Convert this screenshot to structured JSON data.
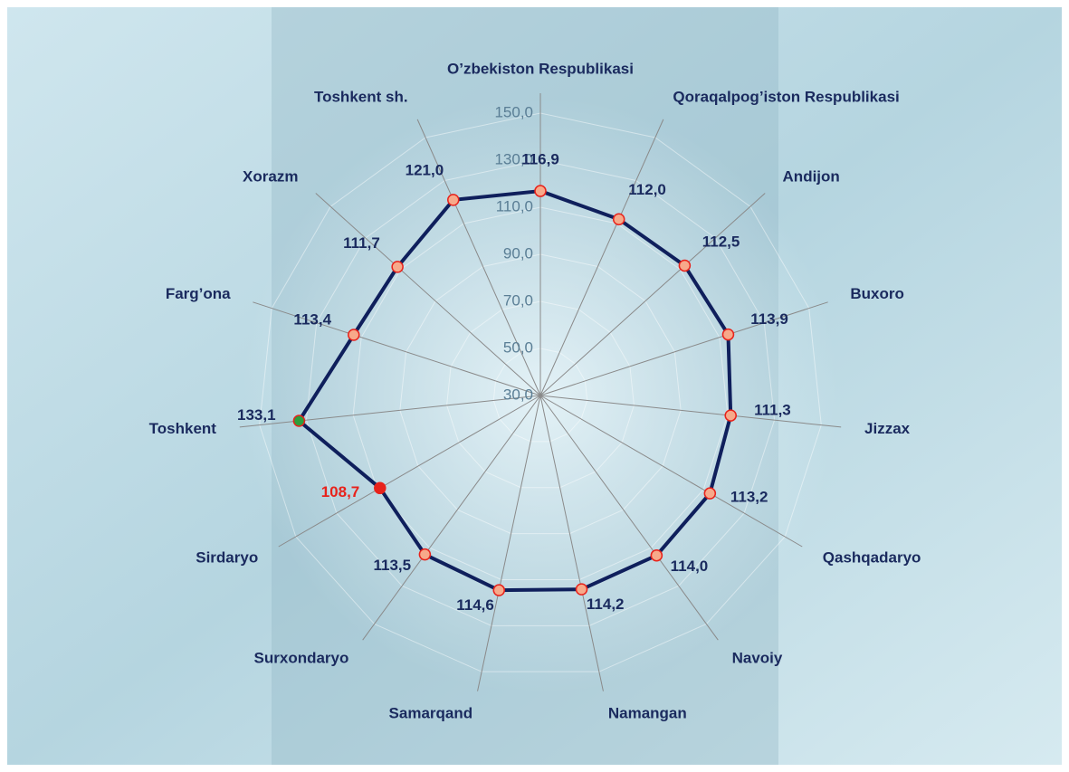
{
  "chart_data": {
    "type": "radar",
    "categories": [
      "O’zbekiston Respublikasi",
      "Qoraqalpog’iston Respublikasi",
      "Andijon",
      "Buxoro",
      "Jizzax",
      "Qashqadaryo",
      "Navoiy",
      "Namangan",
      "Samarqand",
      "Surxondaryo",
      "Sirdaryo",
      "Toshkent",
      "Farg’ona",
      "Xorazm",
      "Toshkent sh."
    ],
    "values": [
      116.9,
      112.0,
      112.5,
      113.9,
      111.3,
      113.2,
      114.0,
      114.2,
      114.6,
      113.5,
      108.7,
      133.1,
      113.4,
      111.7,
      121.0
    ],
    "value_labels": [
      "116,9",
      "112,0",
      "112,5",
      "113,9",
      "111,3",
      "113,2",
      "114,0",
      "114,2",
      "114,6",
      "113,5",
      "108,7",
      "133,1",
      "113,4",
      "111,7",
      "121,0"
    ],
    "value_label_colors": [
      "#1a2a5e",
      "#1a2a5e",
      "#1a2a5e",
      "#1a2a5e",
      "#1a2a5e",
      "#1a2a5e",
      "#1a2a5e",
      "#1a2a5e",
      "#1a2a5e",
      "#1a2a5e",
      "#e8221b",
      "#1a2a5e",
      "#1a2a5e",
      "#1a2a5e",
      "#1a2a5e"
    ],
    "marker_colors": [
      "#f7a98a",
      "#f7a98a",
      "#f7a98a",
      "#f7a98a",
      "#f7a98a",
      "#f7a98a",
      "#f7a98a",
      "#f7a98a",
      "#f7a98a",
      "#f7a98a",
      "#e8221b",
      "#2e9e3c",
      "#f7a98a",
      "#f7a98a",
      "#f7a98a"
    ],
    "color": "#0f1f5c",
    "rlim": [
      30,
      150
    ],
    "rticks": [
      {
        "value": 30,
        "label": "30,0"
      },
      {
        "value": 50,
        "label": "50,0"
      },
      {
        "value": 70,
        "label": "70,0"
      },
      {
        "value": 90,
        "label": "90,0"
      },
      {
        "value": 110,
        "label": "110,0"
      },
      {
        "value": 130,
        "label": "130,0"
      },
      {
        "value": 150,
        "label": "150,0"
      }
    ],
    "grid": true
  }
}
